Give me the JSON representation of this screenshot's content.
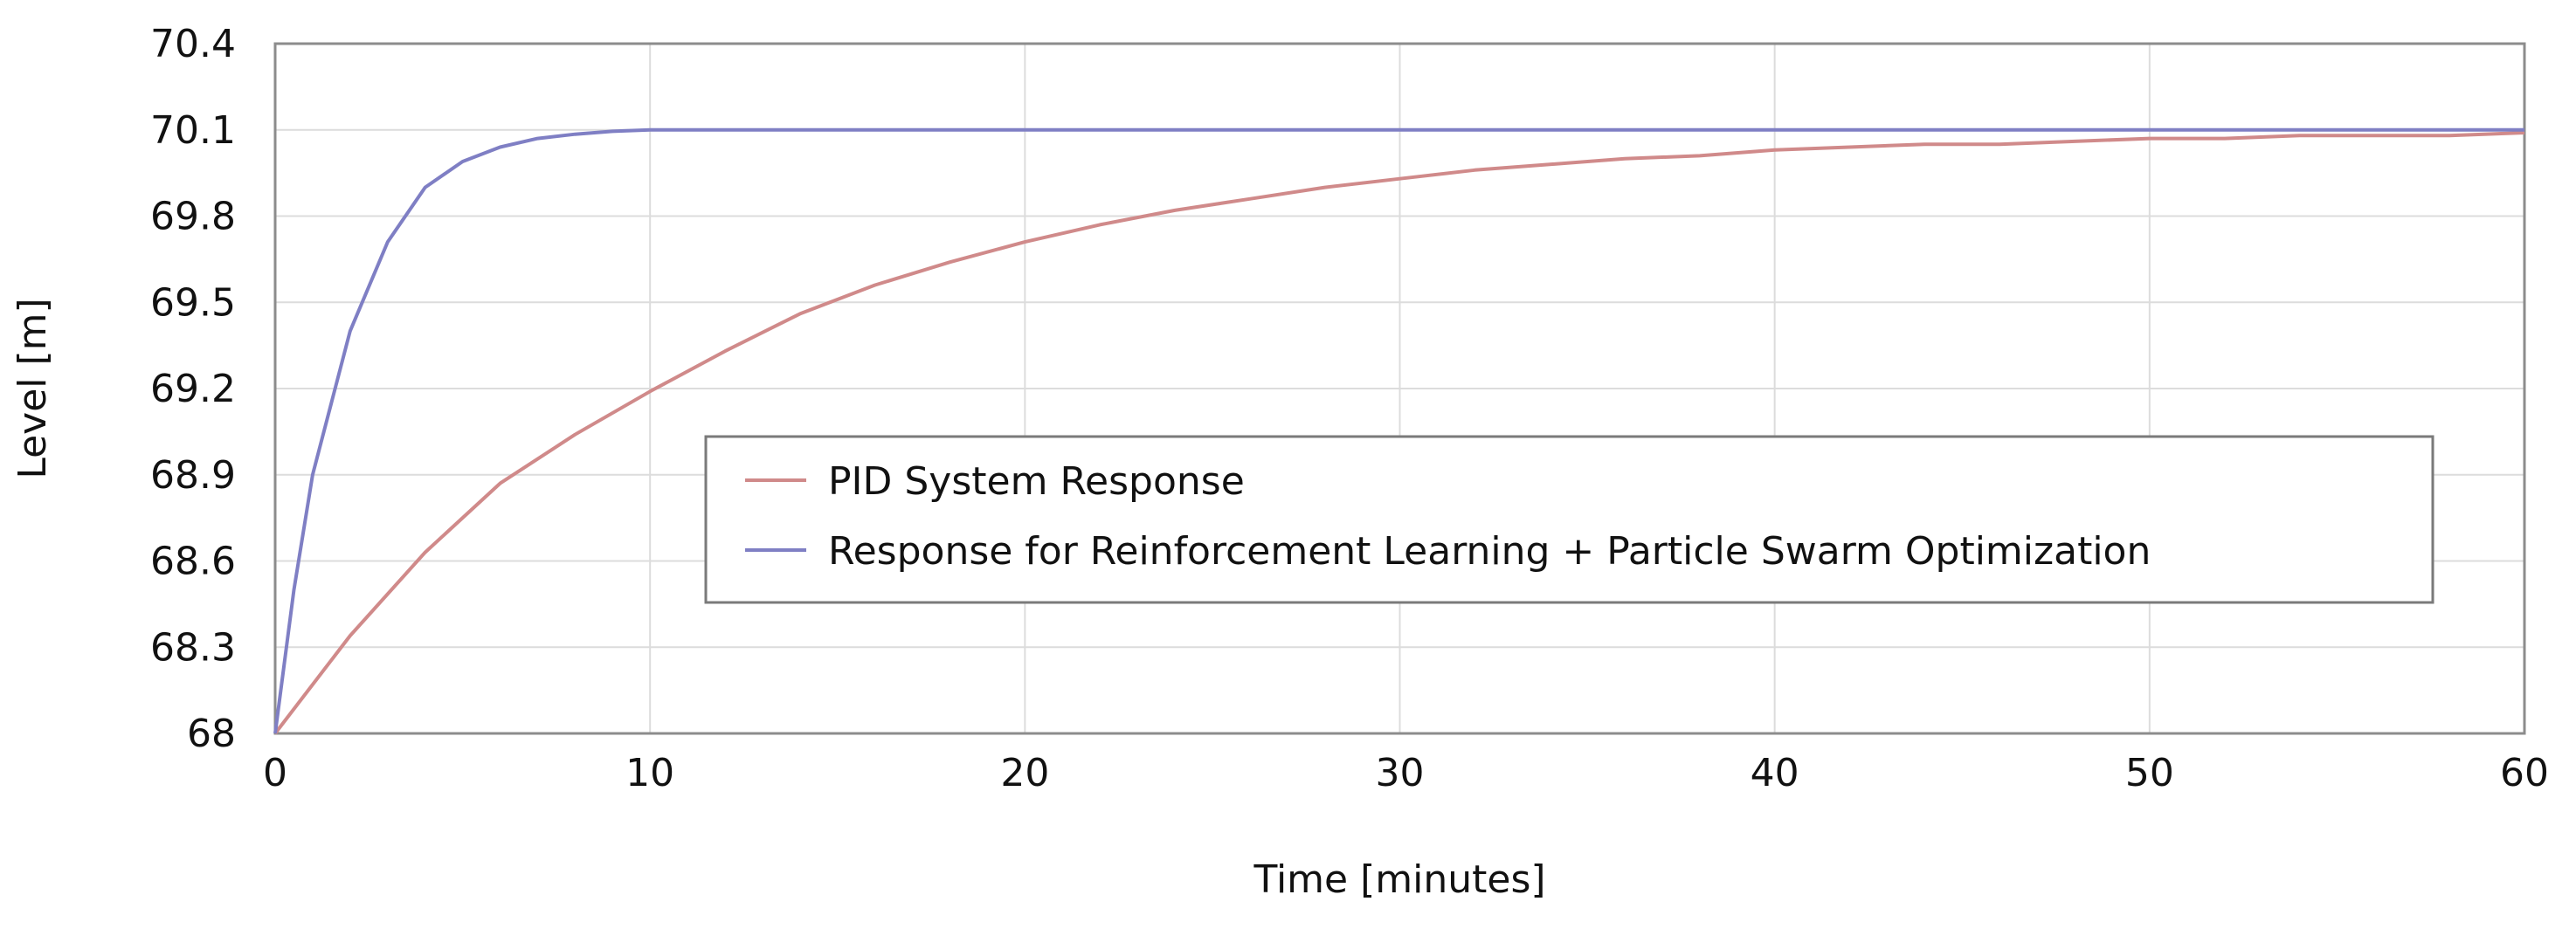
{
  "chart_data": {
    "type": "line",
    "title": "",
    "xlabel": "Time [minutes]",
    "ylabel": "Level [m]",
    "xlim": [
      0,
      60
    ],
    "ylim": [
      68,
      70.4
    ],
    "x_ticks": [
      0,
      10,
      20,
      30,
      40,
      50,
      60
    ],
    "x_tick_labels": [
      "0",
      "10",
      "20",
      "30",
      "40",
      "50",
      "60"
    ],
    "y_ticks": [
      68,
      68.3,
      68.6,
      68.9,
      69.2,
      69.5,
      69.8,
      70.1,
      70.4
    ],
    "y_tick_labels": [
      "68",
      "68.3",
      "68.6",
      "68.9",
      "69.2",
      "69.5",
      "69.8",
      "70.1",
      "70.4"
    ],
    "grid": true,
    "legend_position": "center-right",
    "series": [
      {
        "name": "PID System Response",
        "color": "#d08a8a",
        "x": [
          0,
          2,
          4,
          6,
          8,
          10,
          12,
          14,
          16,
          18,
          20,
          22,
          24,
          26,
          28,
          30,
          32,
          34,
          36,
          38,
          40,
          42,
          44,
          46,
          48,
          50,
          52,
          54,
          56,
          58,
          60
        ],
        "y": [
          68.0,
          68.34,
          68.63,
          68.87,
          69.04,
          69.19,
          69.33,
          69.46,
          69.56,
          69.64,
          69.71,
          69.77,
          69.82,
          69.86,
          69.9,
          69.93,
          69.96,
          69.98,
          70.0,
          70.01,
          70.03,
          70.04,
          70.05,
          70.05,
          70.06,
          70.07,
          70.07,
          70.08,
          70.08,
          70.08,
          70.09
        ]
      },
      {
        "name": "Response for Reinforcement Learning + Particle Swarm Optimization",
        "color": "#7f7fc4",
        "x": [
          0,
          0.5,
          1,
          2,
          3,
          4,
          5,
          6,
          7,
          8,
          9,
          10,
          12,
          15,
          20,
          30,
          40,
          50,
          60
        ],
        "y": [
          68.0,
          68.5,
          68.9,
          69.4,
          69.71,
          69.9,
          69.99,
          70.04,
          70.07,
          70.085,
          70.095,
          70.1,
          70.1,
          70.1,
          70.1,
          70.1,
          70.1,
          70.1,
          70.1
        ]
      }
    ]
  }
}
